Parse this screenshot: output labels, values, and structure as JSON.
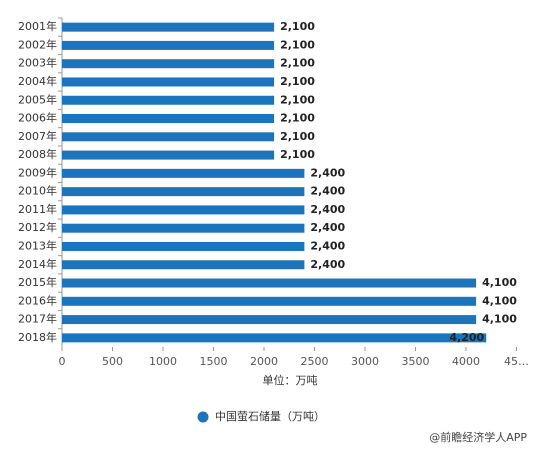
{
  "chart_data": {
    "type": "bar",
    "orientation": "horizontal",
    "categories": [
      "2001年",
      "2002年",
      "2003年",
      "2004年",
      "2005年",
      "2006年",
      "2007年",
      "2008年",
      "2009年",
      "2010年",
      "2011年",
      "2012年",
      "2013年",
      "2014年",
      "2015年",
      "2016年",
      "2017年",
      "2018年"
    ],
    "series": [
      {
        "name": "中国萤石储量（万吨）",
        "color": "#1c75bc",
        "values": [
          2100,
          2100,
          2100,
          2100,
          2100,
          2100,
          2100,
          2100,
          2400,
          2400,
          2400,
          2400,
          2400,
          2400,
          4100,
          4100,
          4100,
          4200
        ],
        "value_labels": [
          "2,100",
          "2,100",
          "2,100",
          "2,100",
          "2,100",
          "2,100",
          "2,100",
          "2,100",
          "2,400",
          "2,400",
          "2,400",
          "2,400",
          "2,400",
          "2,400",
          "4,100",
          "4,100",
          "4,100",
          "4,200"
        ]
      }
    ],
    "xlim": [
      0,
      4500
    ],
    "xticks": [
      0,
      500,
      1000,
      1500,
      2000,
      2500,
      3000,
      3500,
      4000,
      {
        "value": 4500,
        "label": "45…"
      }
    ],
    "xlabel": "单位：万吨",
    "legend": "bottom",
    "footer": "@前瞻经济学人APP"
  }
}
